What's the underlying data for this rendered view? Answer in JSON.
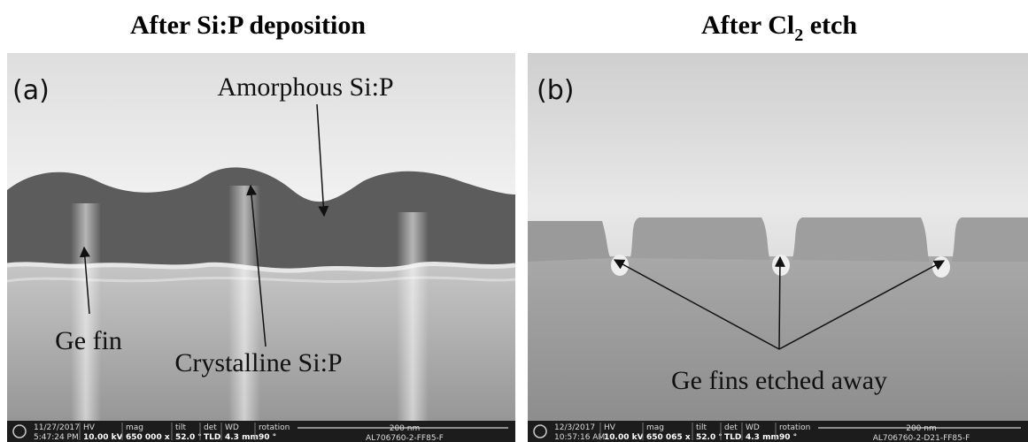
{
  "panels": [
    {
      "title": [
        "After Si:P deposition"
      ],
      "label": "(a)",
      "annotations": [
        "Amorphous Si:P",
        "Ge fin",
        "Crystalline Si:P"
      ],
      "databar": {
        "date": "11/27/2017",
        "time": "5:47:24 PM",
        "fields": [
          [
            "HV",
            "10.00 kV"
          ],
          [
            "mag",
            "650 000 x"
          ],
          [
            "tilt",
            "52.0 °"
          ],
          [
            "det",
            "TLD"
          ],
          [
            "WD",
            "4.3 mm"
          ],
          [
            "rotation",
            "90 °"
          ]
        ],
        "scale": "200 nm",
        "sample": "AL706760-2-FF85-F"
      }
    },
    {
      "title": [
        "After Cl",
        "2",
        " etch"
      ],
      "label": "(b)",
      "annotations": [
        "Ge fins etched away"
      ],
      "databar": {
        "date": "12/3/2017",
        "time": "10:57:16 AM",
        "fields": [
          [
            "HV",
            "10.00 kV"
          ],
          [
            "mag",
            "650 065 x"
          ],
          [
            "tilt",
            "52.0 °"
          ],
          [
            "det",
            "TLD"
          ],
          [
            "WD",
            "4.3 mm"
          ],
          [
            "rotation",
            "90 °"
          ]
        ],
        "scale": "200 nm",
        "sample": "AL706760-2-D21-FF85-F"
      }
    }
  ]
}
